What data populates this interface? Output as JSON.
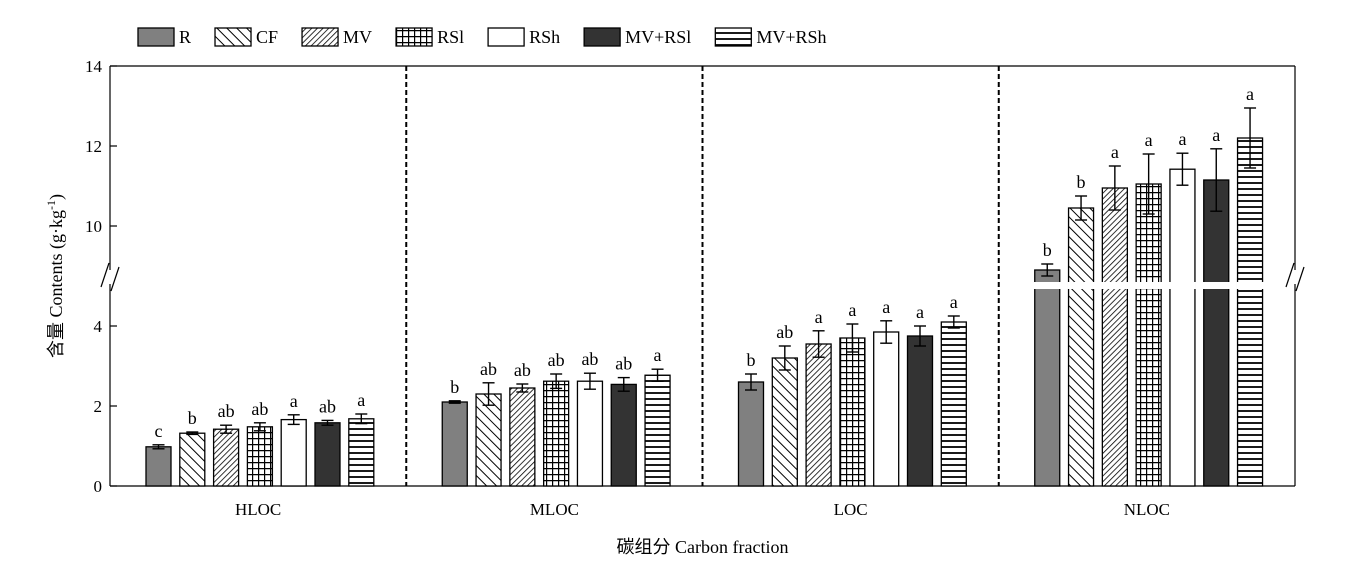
{
  "chart_data": {
    "type": "bar",
    "xlabel": "碳组分 Carbon fraction",
    "ylabel_prefix": "含量 Contents (g·kg",
    "ylabel_sup": "-1",
    "ylabel_suffix": ")",
    "y_axis_break": true,
    "ylim_lower": [
      0,
      5
    ],
    "ylim_upper": [
      8.5,
      14
    ],
    "yticks_lower": [
      "0",
      "2",
      "4"
    ],
    "yticks_upper": [
      "10",
      "12",
      "14"
    ],
    "legend_position": "top",
    "categories": [
      "HLOC",
      "MLOC",
      "LOC",
      "NLOC"
    ],
    "series": [
      {
        "name": "R",
        "pattern": "solid-gray",
        "values": [
          0.98,
          2.1,
          2.6,
          8.9
        ],
        "errors": [
          0.05,
          0.03,
          0.2,
          0.15
        ],
        "letters": [
          "c",
          "b",
          "b",
          "b"
        ]
      },
      {
        "name": "CF",
        "pattern": "diagonal",
        "values": [
          1.32,
          2.3,
          3.2,
          10.45
        ],
        "errors": [
          0.03,
          0.28,
          0.3,
          0.3
        ],
        "letters": [
          "b",
          "ab",
          "ab",
          "b"
        ]
      },
      {
        "name": "MV",
        "pattern": "dense-diagonal",
        "values": [
          1.42,
          2.45,
          3.55,
          10.95
        ],
        "errors": [
          0.1,
          0.1,
          0.33,
          0.55
        ],
        "letters": [
          "ab",
          "ab",
          "a",
          "a"
        ]
      },
      {
        "name": "RSl",
        "pattern": "grid",
        "values": [
          1.48,
          2.62,
          3.7,
          11.05
        ],
        "errors": [
          0.1,
          0.18,
          0.35,
          0.75
        ],
        "letters": [
          "ab",
          "ab",
          "a",
          "a"
        ]
      },
      {
        "name": "RSh",
        "pattern": "white",
        "values": [
          1.66,
          2.62,
          3.85,
          11.42
        ],
        "errors": [
          0.12,
          0.2,
          0.28,
          0.4
        ],
        "letters": [
          "a",
          "ab",
          "a",
          "a"
        ]
      },
      {
        "name": "MV+RSl",
        "pattern": "solid-dark",
        "values": [
          1.58,
          2.54,
          3.75,
          11.15
        ],
        "errors": [
          0.06,
          0.17,
          0.25,
          0.78
        ],
        "letters": [
          "ab",
          "ab",
          "a",
          "a"
        ]
      },
      {
        "name": "MV+RSh",
        "pattern": "horizontal",
        "values": [
          1.68,
          2.77,
          4.1,
          12.2
        ],
        "errors": [
          0.12,
          0.15,
          0.15,
          0.75
        ],
        "letters": [
          "a",
          "a",
          "a",
          "a"
        ]
      }
    ]
  }
}
